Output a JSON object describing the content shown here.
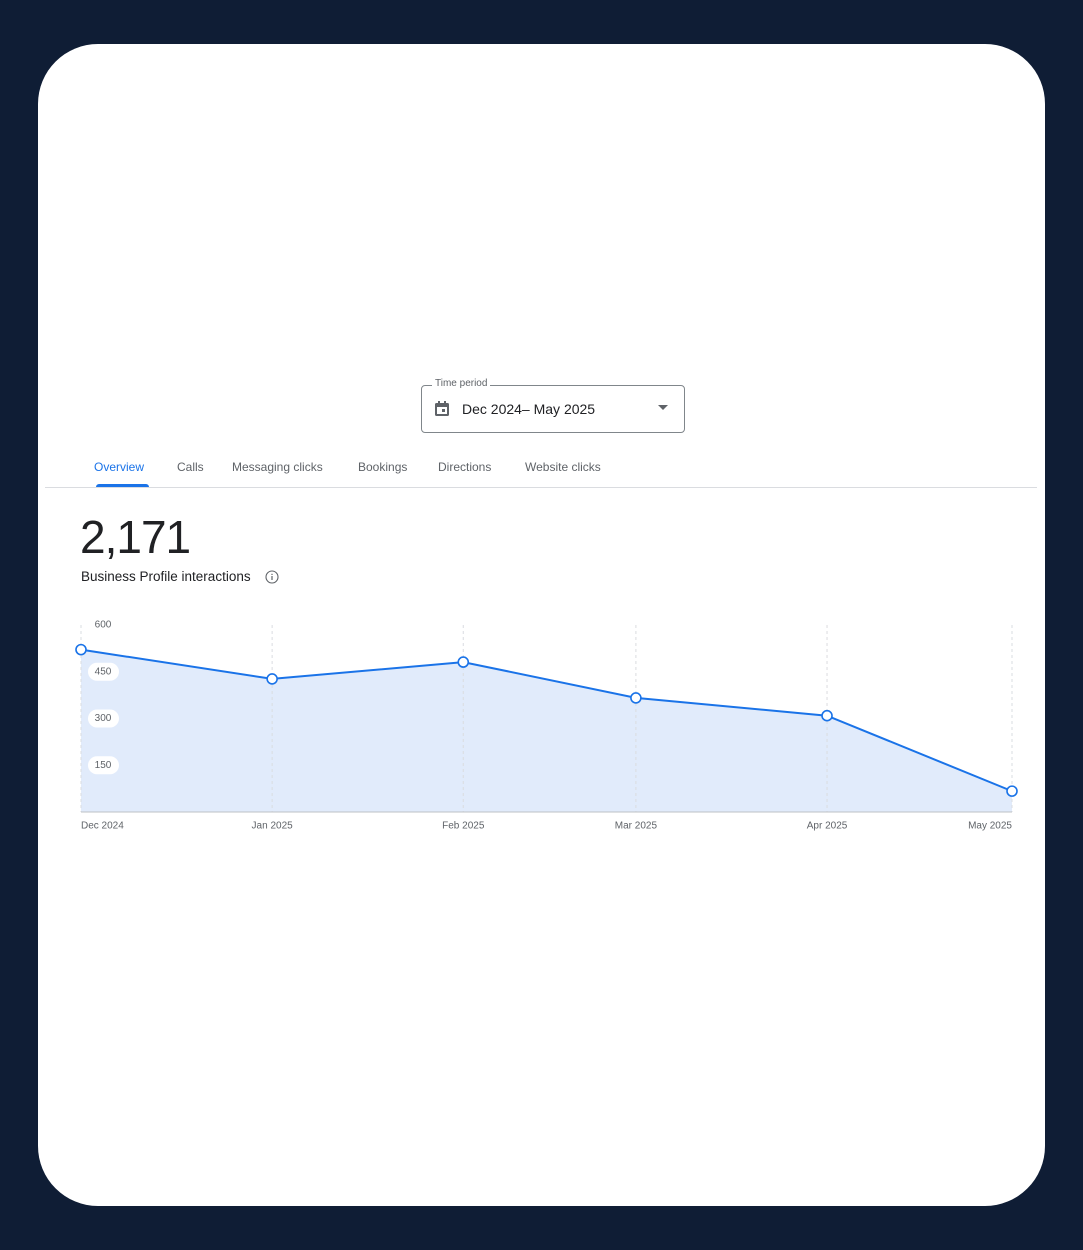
{
  "time_period": {
    "label": "Time period",
    "value": "Dec 2024– May 2025"
  },
  "tabs": [
    "Overview",
    "Calls",
    "Messaging clicks",
    "Bookings",
    "Directions",
    "Website clicks"
  ],
  "summary": {
    "total": "2,171",
    "label": "Business Profile interactions"
  },
  "chart_data": {
    "type": "area",
    "categories": [
      "Dec 2024",
      "Jan 2025",
      "Feb 2025",
      "Mar 2025",
      "Apr 2025",
      "May 2025"
    ],
    "series": [
      {
        "name": "Business Profile interactions",
        "color": "#1a73e8",
        "values": [
          521,
          427,
          481,
          366,
          309,
          67
        ]
      }
    ],
    "ylim": [
      0,
      600
    ],
    "yticks": [
      150,
      300,
      450,
      600
    ],
    "grid": true
  }
}
